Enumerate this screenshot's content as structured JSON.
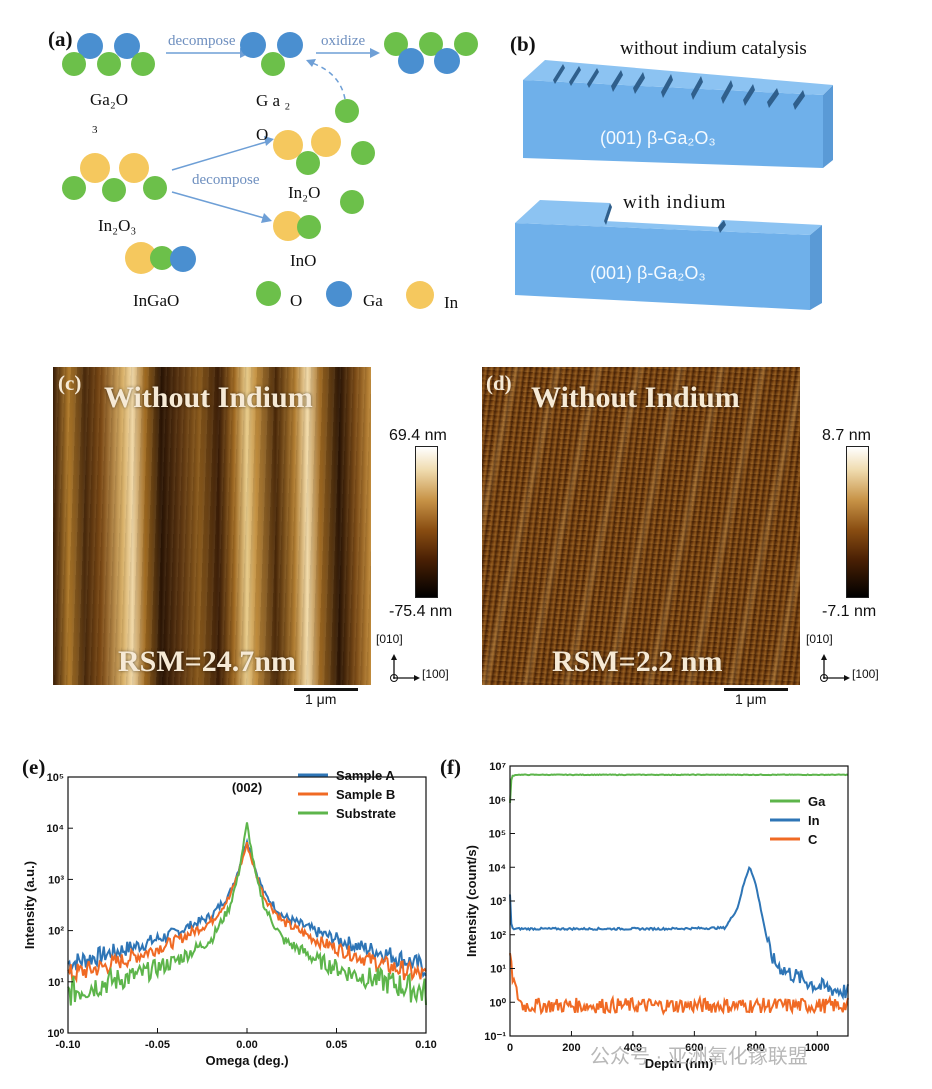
{
  "panels": {
    "a": {
      "label": "(a)",
      "ga2o": "Ga₂O",
      "ga2": "G a ₂",
      "sub3": "3",
      "o_label": "O",
      "in2o": "In₂O",
      "in2o3": "In₂O₃",
      "ino": "InO",
      "ingao": "InGaO",
      "decompose_top": "decompose",
      "oxidize": "oxidize",
      "decompose_mid": "decompose",
      "legend_o": "O",
      "legend_ga": "Ga",
      "legend_in": "In"
    },
    "b": {
      "label": "(b)",
      "top_caption": "without indium catalysis",
      "top_block": "(001)  β-Ga₂O₃",
      "bottom_caption": "with   indium",
      "bottom_block": "(001)  β-Ga₂O₃"
    },
    "c": {
      "label": "(c)",
      "title": "Without Indium",
      "rsm": "RSM=24.7nm",
      "cb_max": "69.4 nm",
      "cb_min": "-75.4 nm",
      "axis_y": "[010]",
      "axis_x": "[100]",
      "scale": "1 μm"
    },
    "d": {
      "label": "(d)",
      "title": "Without Indium",
      "rsm": "RSM=2.2 nm",
      "cb_max": "8.7 nm",
      "cb_min": "-7.1 nm",
      "axis_y": "[010]",
      "axis_x": "[100]",
      "scale": "1 μm"
    },
    "e": {
      "label": "(e)",
      "peak_label": "(002)"
    },
    "f": {
      "label": "(f)"
    }
  },
  "watermark": "公众号 · 亚洲氧化镓联盟",
  "colors": {
    "oxygen": "#6cc04a",
    "gallium": "#4a8fd0",
    "indium": "#f5c85e",
    "block": "#74b2ea",
    "series_a": "#2e75b6",
    "series_b": "#f06a24",
    "substrate": "#5db54b"
  },
  "chart_data": [
    {
      "id": "e",
      "type": "line",
      "xlabel": "Omega (deg.)",
      "ylabel": "Intensity (a.u.)",
      "xlim": [
        -0.1,
        0.1
      ],
      "ylim": [
        1,
        500000
      ],
      "yscale": "log",
      "x_ticks": [
        "-0.10",
        "-0.05",
        "0.00",
        "0.05",
        "0.10"
      ],
      "y_ticks": [
        "10⁰",
        "10¹",
        "10²",
        "10³",
        "10⁴",
        "10⁵"
      ],
      "legend_position": "top-right",
      "series": [
        {
          "name": "Sample A",
          "color": "#2e75b6",
          "x": [
            -0.1,
            -0.08,
            -0.06,
            -0.04,
            -0.02,
            -0.01,
            -0.005,
            0,
            0.005,
            0.01,
            0.02,
            0.04,
            0.06,
            0.08,
            0.1
          ],
          "y": [
            35,
            55,
            90,
            170,
            400,
            1200,
            4000,
            20000,
            4000,
            1200,
            400,
            170,
            90,
            55,
            28
          ]
        },
        {
          "name": "Sample B",
          "color": "#f06a24",
          "x": [
            -0.1,
            -0.08,
            -0.06,
            -0.04,
            -0.02,
            -0.01,
            -0.005,
            0,
            0.005,
            0.01,
            0.02,
            0.04,
            0.06,
            0.08,
            0.1
          ],
          "y": [
            20,
            30,
            55,
            110,
            300,
            1000,
            3500,
            16000,
            3500,
            1000,
            300,
            110,
            55,
            30,
            18
          ]
        },
        {
          "name": "Substrate",
          "color": "#5db54b",
          "x": [
            -0.1,
            -0.08,
            -0.06,
            -0.04,
            -0.02,
            -0.01,
            -0.005,
            0,
            0.005,
            0.01,
            0.02,
            0.04,
            0.06,
            0.08,
            0.1
          ],
          "y": [
            8,
            13,
            20,
            40,
            120,
            600,
            3000,
            45000,
            3000,
            600,
            120,
            40,
            20,
            13,
            8
          ]
        }
      ]
    },
    {
      "id": "f",
      "type": "line",
      "xlabel": "Depth (nm)",
      "ylabel": "Intensity (count/s)",
      "xlim": [
        0,
        1100
      ],
      "ylim": [
        0.1,
        10000000
      ],
      "yscale": "log",
      "x_ticks": [
        "0",
        "200",
        "400",
        "600",
        "800",
        "1000"
      ],
      "y_ticks": [
        "10⁻¹",
        "10⁰",
        "10¹",
        "10²",
        "10³",
        "10⁴",
        "10⁵",
        "10⁶",
        "10⁷"
      ],
      "legend_position": "center-right",
      "series": [
        {
          "name": "Ga",
          "color": "#5db54b",
          "x": [
            0,
            5,
            20,
            100,
            300,
            500,
            700,
            900,
            1100
          ],
          "y": [
            800000,
            5000000,
            5500000,
            5500000,
            5500000,
            5500000,
            5500000,
            5500000,
            5500000
          ]
        },
        {
          "name": "In",
          "color": "#2e75b6",
          "x": [
            0,
            5,
            20,
            100,
            300,
            500,
            700,
            740,
            760,
            780,
            800,
            820,
            840,
            860,
            900,
            1000,
            1100
          ],
          "y": [
            1500,
            150,
            150,
            150,
            150,
            150,
            160,
            600,
            3000,
            11000,
            3000,
            400,
            50,
            15,
            8,
            3,
            2
          ]
        },
        {
          "name": "C",
          "color": "#f06a24",
          "x": [
            0,
            5,
            20,
            40,
            100,
            300,
            500,
            700,
            900,
            1100
          ],
          "y": [
            30,
            8,
            2,
            0.8,
            0.8,
            0.8,
            0.8,
            0.8,
            0.8,
            0.8
          ]
        }
      ]
    }
  ]
}
